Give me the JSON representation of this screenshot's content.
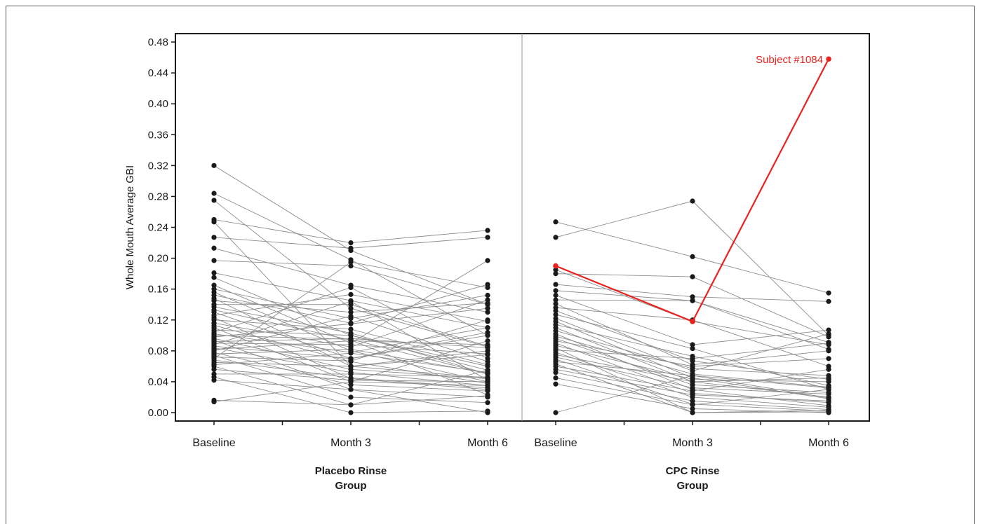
{
  "chart_data": {
    "type": "line",
    "ylabel": "Whole Mouth Average GBI",
    "ylim": [
      0,
      0.48
    ],
    "yticks": [
      "0.00",
      "0.04",
      "0.08",
      "0.12",
      "0.16",
      "0.20",
      "0.24",
      "0.28",
      "0.32",
      "0.36",
      "0.40",
      "0.44",
      "0.48"
    ],
    "categories": [
      "Baseline",
      "Month 3",
      "Month 6"
    ],
    "groups": [
      {
        "name": "Placebo Rinse Group",
        "label_lines": [
          "Placebo Rinse",
          "Group"
        ],
        "series": [
          [
            0.32,
            0.21,
            0.14
          ],
          [
            0.284,
            0.198,
            0.1
          ],
          [
            0.275,
            0.135,
            0.085
          ],
          [
            0.25,
            0.22,
            0.236
          ],
          [
            0.247,
            0.06,
            0.045
          ],
          [
            0.227,
            0.213,
            0.227
          ],
          [
            0.213,
            0.165,
            0.13
          ],
          [
            0.197,
            0.19,
            0.14
          ],
          [
            0.181,
            0.145,
            0.11
          ],
          [
            0.175,
            0.1,
            0.06
          ],
          [
            0.165,
            0.09,
            0.197
          ],
          [
            0.16,
            0.122,
            0.152
          ],
          [
            0.156,
            0.08,
            0.04
          ],
          [
            0.152,
            0.116,
            0.166
          ],
          [
            0.148,
            0.06,
            0.075
          ],
          [
            0.145,
            0.13,
            0.142
          ],
          [
            0.14,
            0.14,
            0.086
          ],
          [
            0.137,
            0.103,
            0.05
          ],
          [
            0.133,
            0.094,
            0.023
          ],
          [
            0.13,
            0.07,
            0.104
          ],
          [
            0.126,
            0.153,
            0.118
          ],
          [
            0.123,
            0.044,
            0.03
          ],
          [
            0.12,
            0.108,
            0.062
          ],
          [
            0.116,
            0.085,
            0.146
          ],
          [
            0.113,
            0.066,
            0.038
          ],
          [
            0.11,
            0.04,
            0.093
          ],
          [
            0.107,
            0.1,
            0.055
          ],
          [
            0.104,
            0.162,
            0.07
          ],
          [
            0.102,
            0.078,
            0.11
          ],
          [
            0.1,
            0.095,
            0.05
          ],
          [
            0.098,
            0.115,
            0.135
          ],
          [
            0.096,
            0.056,
            0.044
          ],
          [
            0.094,
            0.03,
            0.0
          ],
          [
            0.092,
            0.096,
            0.084
          ],
          [
            0.09,
            0.088,
            0.076
          ],
          [
            0.088,
            0.144,
            0.042
          ],
          [
            0.086,
            0.07,
            0.1
          ],
          [
            0.084,
            0.052,
            0.035
          ],
          [
            0.082,
            0.093,
            0.088
          ],
          [
            0.08,
            0.125,
            0.066
          ],
          [
            0.078,
            0.036,
            0.028
          ],
          [
            0.076,
            0.082,
            0.051
          ],
          [
            0.074,
            0.02,
            0.013
          ],
          [
            0.072,
            0.067,
            0.12
          ],
          [
            0.07,
            0.195,
            0.162
          ],
          [
            0.068,
            0.045,
            0.032
          ],
          [
            0.065,
            0.06,
            0.08
          ],
          [
            0.062,
            0.077,
            0.052
          ],
          [
            0.06,
            0.01,
            0.022
          ],
          [
            0.056,
            0.042,
            0.04
          ],
          [
            0.05,
            0.05,
            0.046
          ],
          [
            0.046,
            0.0,
            0.002
          ],
          [
            0.042,
            0.03,
            0.02
          ],
          [
            0.016,
            0.01,
            0.055
          ],
          [
            0.014,
            0.04,
            0.035
          ]
        ]
      },
      {
        "name": "CPC Rinse Group",
        "label_lines": [
          "CPC Rinse",
          "Group"
        ],
        "series": [
          [
            0.247,
            0.202,
            0.155
          ],
          [
            0.227,
            0.274,
            0.1
          ],
          [
            0.19,
            0.118,
            0.458
          ],
          [
            0.185,
            0.118,
            0.088
          ],
          [
            0.18,
            0.176,
            0.098
          ],
          [
            0.166,
            0.15,
            0.144
          ],
          [
            0.158,
            0.145,
            0.091
          ],
          [
            0.152,
            0.088,
            0.107
          ],
          [
            0.146,
            0.145,
            0.082
          ],
          [
            0.141,
            0.062,
            0.08
          ],
          [
            0.136,
            0.12,
            0.06
          ],
          [
            0.132,
            0.067,
            0.043
          ],
          [
            0.127,
            0.083,
            0.03
          ],
          [
            0.122,
            0.054,
            0.102
          ],
          [
            0.118,
            0.045,
            0.018
          ],
          [
            0.114,
            0.073,
            0.035
          ],
          [
            0.11,
            0.04,
            0.02
          ],
          [
            0.106,
            0.057,
            0.048
          ],
          [
            0.102,
            0.03,
            0.009
          ],
          [
            0.099,
            0.05,
            0.033
          ],
          [
            0.096,
            0.036,
            0.026
          ],
          [
            0.093,
            0.06,
            0.07
          ],
          [
            0.09,
            0.025,
            0.013
          ],
          [
            0.087,
            0.043,
            0.04
          ],
          [
            0.084,
            0.0,
            0.001
          ],
          [
            0.081,
            0.07,
            0.09
          ],
          [
            0.078,
            0.02,
            0.007
          ],
          [
            0.075,
            0.04,
            0.045
          ],
          [
            0.072,
            0.032,
            0.024
          ],
          [
            0.069,
            0.011,
            0.002
          ],
          [
            0.066,
            0.048,
            0.019
          ],
          [
            0.063,
            0.0,
            0.003
          ],
          [
            0.06,
            0.028,
            0.056
          ],
          [
            0.056,
            0.023,
            0.015
          ],
          [
            0.052,
            0.015,
            0.004
          ],
          [
            0.045,
            0.01,
            0.03
          ],
          [
            0.037,
            0.005,
            0.0
          ],
          [
            0.0,
            0.048,
            0.032
          ]
        ],
        "highlight": {
          "index": 2,
          "label": "Subject #1084",
          "color": "#e8231f"
        }
      }
    ],
    "colors": {
      "line": "#8c8c8c",
      "point": "#1a1a1a",
      "highlight": "#e8231f"
    }
  }
}
